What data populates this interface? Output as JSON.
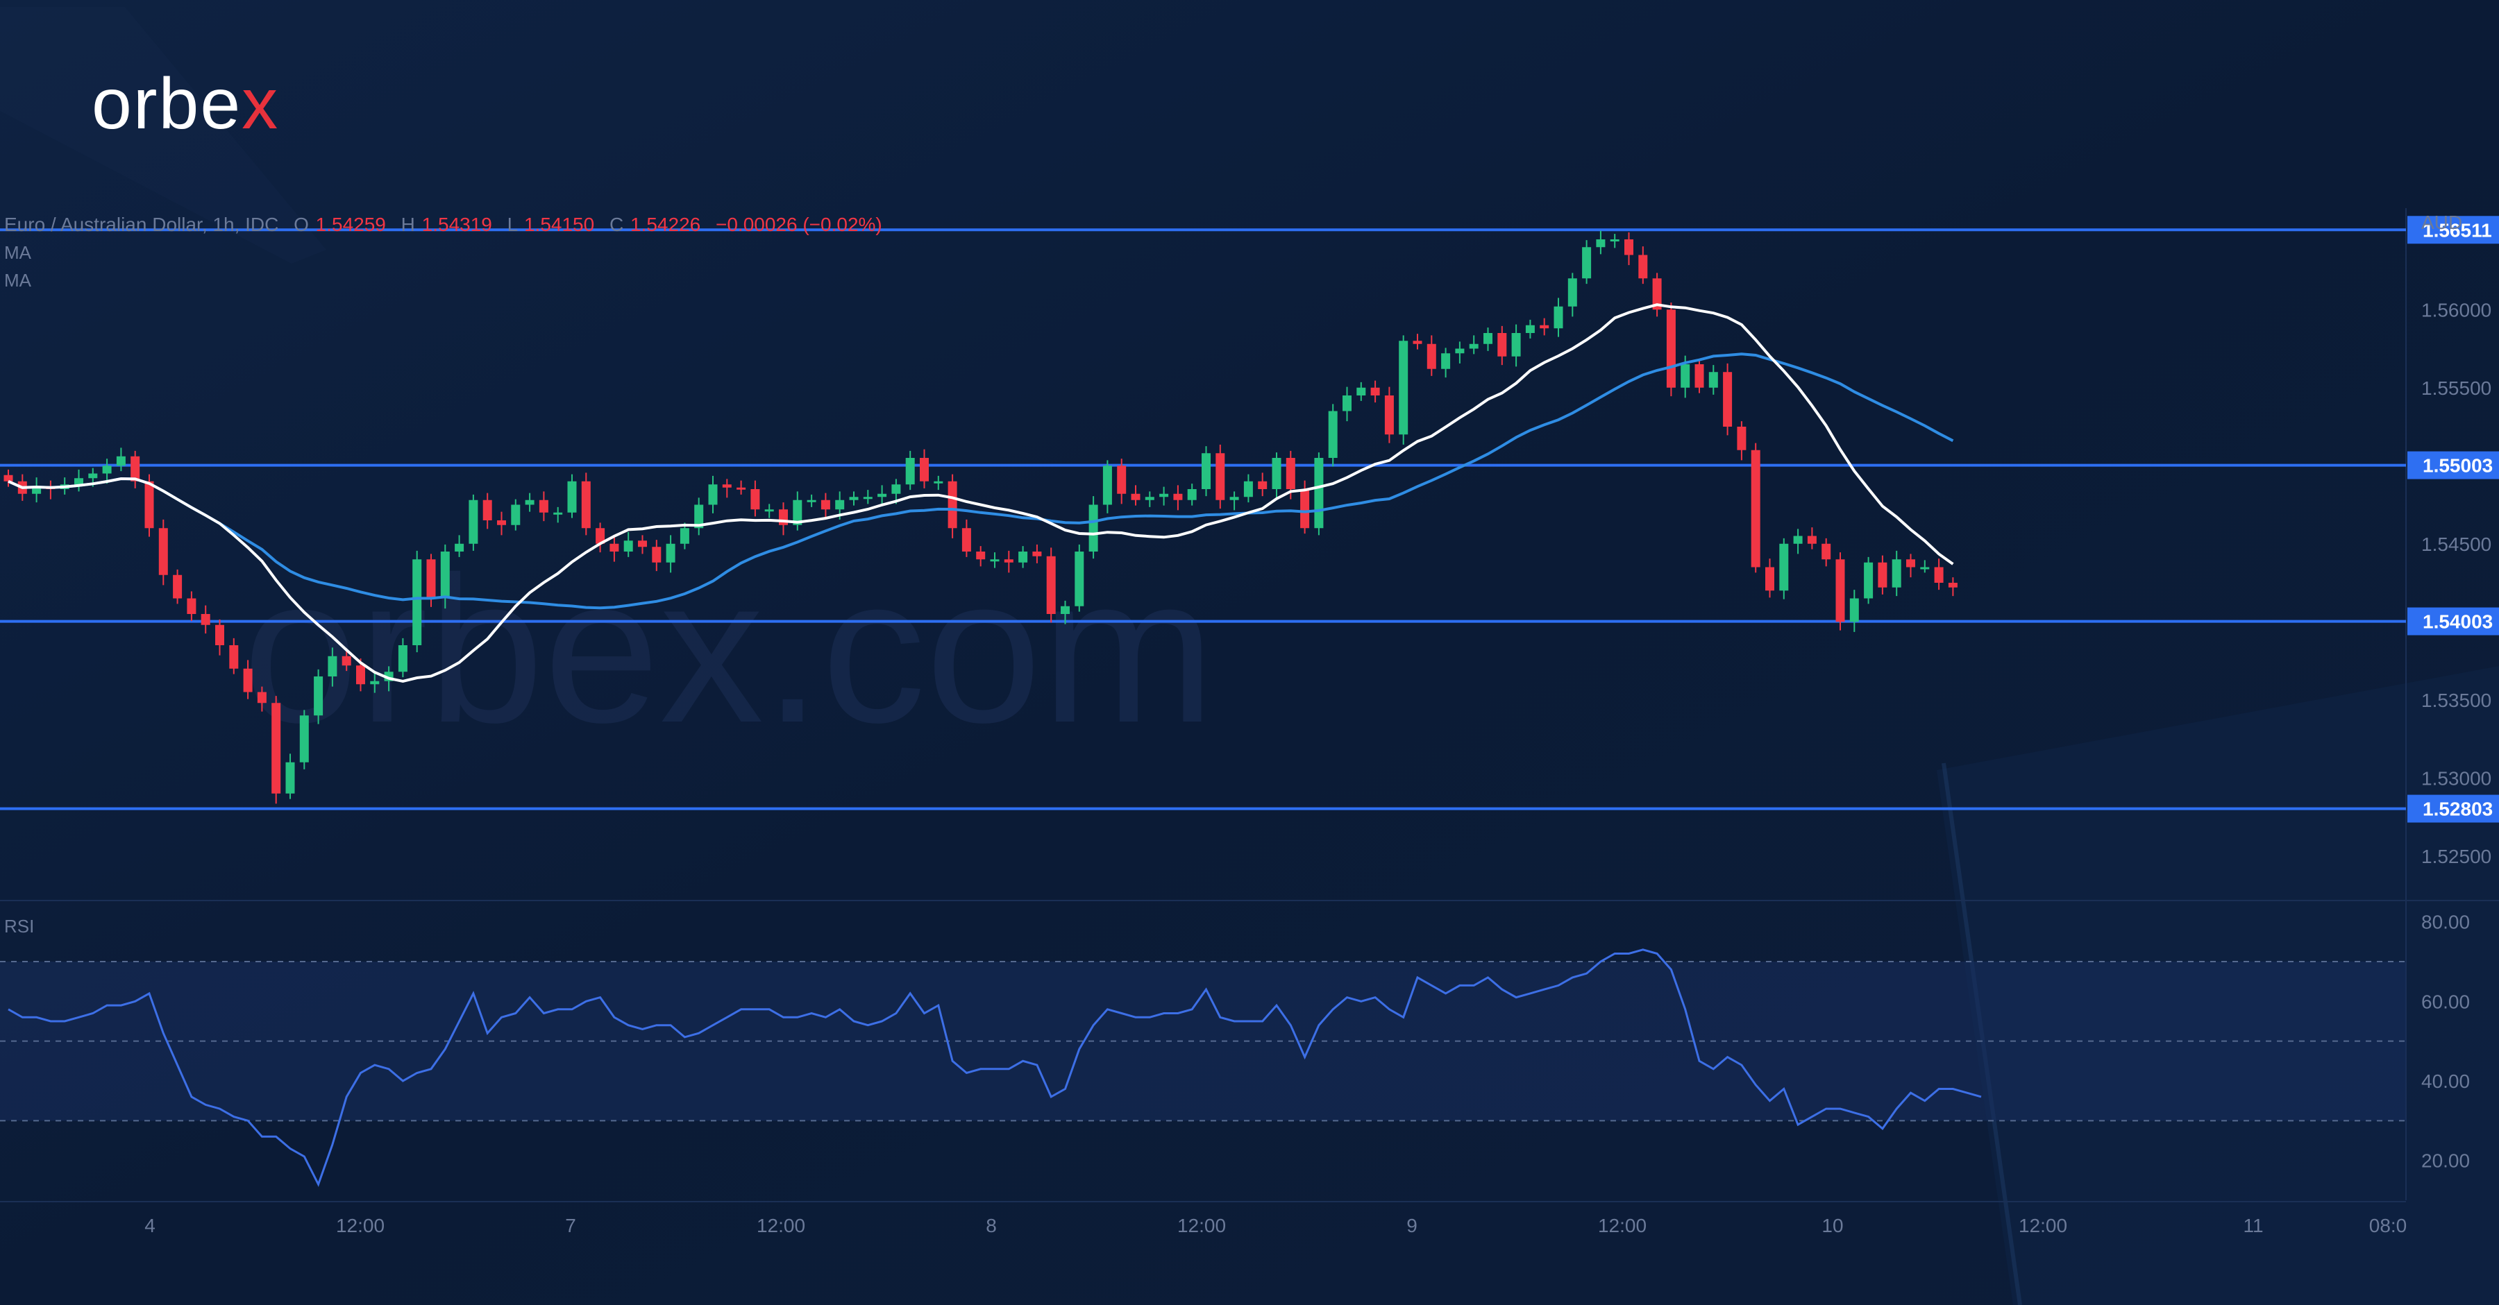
{
  "brand": {
    "logo_text": "orbex",
    "watermark_text": "orbex.com"
  },
  "colors": {
    "background": "#0b1b36",
    "up": "#26c281",
    "down": "#f23645",
    "ma_fast": "#ffffff",
    "ma_slow": "#2f8de4",
    "level_line": "#2e6ff2",
    "rsi_line": "#3d6fe6",
    "text": "#6b7a99",
    "logo_x": "#e8323c"
  },
  "legend": {
    "symbol": "Euro / Australian Dollar, 1h, IDC",
    "o_label": "O",
    "o_value": "1.54259",
    "h_label": "H",
    "h_value": "1.54319",
    "l_label": "L",
    "l_value": "1.54150",
    "c_label": "C",
    "c_value": "1.54226",
    "change": "−0.00026 (−0.02%)",
    "ma1": "MA",
    "ma2": "MA"
  },
  "rsi_label": "RSI",
  "currency": "AUD",
  "chart_data": [
    {
      "type": "candlestick",
      "title": "Euro / Australian Dollar, 1h, IDC",
      "ylabel": "AUD",
      "ylim": [
        1.5225,
        1.5665
      ],
      "x_ticks": [
        "4",
        "12:00",
        "7",
        "12:00",
        "8",
        "12:00",
        "9",
        "12:00",
        "10",
        "12:00",
        "11",
        "08:0"
      ],
      "y_ticks": [
        "1.56000",
        "1.55500",
        "1.54500",
        "1.53500",
        "1.53000",
        "1.52500"
      ],
      "levels": [
        {
          "value": 1.56511,
          "label": "1.56511"
        },
        {
          "value": 1.55003,
          "label": "1.55003"
        },
        {
          "value": 1.54003,
          "label": "1.54003"
        },
        {
          "value": 1.52803,
          "label": "1.52803"
        }
      ],
      "close": [
        1.549,
        1.5482,
        1.5487,
        1.5485,
        1.5488,
        1.5492,
        1.5495,
        1.55,
        1.5506,
        1.549,
        1.546,
        1.543,
        1.5415,
        1.5405,
        1.5398,
        1.5385,
        1.537,
        1.5355,
        1.5348,
        1.529,
        1.531,
        1.534,
        1.5365,
        1.5378,
        1.5372,
        1.536,
        1.5362,
        1.5368,
        1.5385,
        1.544,
        1.5415,
        1.5445,
        1.545,
        1.5478,
        1.5465,
        1.5462,
        1.5475,
        1.5478,
        1.547,
        1.547,
        1.549,
        1.546,
        1.545,
        1.5445,
        1.5452,
        1.5448,
        1.5438,
        1.545,
        1.546,
        1.5475,
        1.5488,
        1.5486,
        1.5485,
        1.5472,
        1.5472,
        1.5462,
        1.5478,
        1.5478,
        1.5472,
        1.5478,
        1.548,
        1.548,
        1.5482,
        1.5488,
        1.5505,
        1.549,
        1.549,
        1.546,
        1.5445,
        1.544,
        1.544,
        1.5438,
        1.5445,
        1.5442,
        1.5405,
        1.541,
        1.5445,
        1.5475,
        1.55,
        1.5482,
        1.5478,
        1.548,
        1.5482,
        1.5478,
        1.5485,
        1.5508,
        1.5478,
        1.548,
        1.549,
        1.5485,
        1.5505,
        1.5485,
        1.546,
        1.5505,
        1.5535,
        1.5545,
        1.555,
        1.5545,
        1.552,
        1.558,
        1.5578,
        1.5562,
        1.5572,
        1.5575,
        1.5578,
        1.5585,
        1.557,
        1.5585,
        1.559,
        1.5588,
        1.5602,
        1.562,
        1.564,
        1.5645,
        1.5645,
        1.5635,
        1.562,
        1.56,
        1.555,
        1.5565,
        1.555,
        1.556,
        1.5525,
        1.551,
        1.5435,
        1.542,
        1.545,
        1.5455,
        1.545,
        1.544,
        1.54,
        1.5415,
        1.5438,
        1.5422,
        1.544,
        1.5435,
        1.5435,
        1.5425,
        1.5422
      ],
      "ma_fast_last": 1.5475,
      "ma_slow_last": 1.5518,
      "ma_legend": [
        "MA",
        "MA"
      ]
    },
    {
      "type": "line",
      "title": "RSI",
      "ylim": [
        10,
        85
      ],
      "y_ticks": [
        "80.00",
        "60.00",
        "40.00",
        "20.00"
      ],
      "bands": [
        70,
        50,
        30
      ],
      "values": [
        58,
        56,
        56,
        55,
        55,
        56,
        57,
        59,
        59,
        60,
        62,
        52,
        44,
        36,
        34,
        33,
        31,
        30,
        26,
        26,
        23,
        21,
        14,
        24,
        36,
        42,
        44,
        43,
        40,
        42,
        43,
        48,
        55,
        62,
        52,
        56,
        57,
        61,
        57,
        58,
        58,
        60,
        61,
        56,
        54,
        53,
        54,
        54,
        51,
        52,
        54,
        56,
        58,
        58,
        58,
        56,
        56,
        57,
        56,
        58,
        55,
        54,
        55,
        57,
        62,
        57,
        59,
        45,
        42,
        43,
        43,
        43,
        45,
        44,
        36,
        38,
        48,
        54,
        58,
        57,
        56,
        56,
        57,
        57,
        58,
        63,
        56,
        55,
        55,
        55,
        59,
        54,
        46,
        54,
        58,
        61,
        60,
        61,
        58,
        56,
        66,
        64,
        62,
        64,
        64,
        66,
        63,
        61,
        62,
        63,
        64,
        66,
        67,
        70,
        72,
        72,
        73,
        72,
        68,
        58,
        45,
        43,
        46,
        44,
        39,
        35,
        38,
        29,
        31,
        33,
        33,
        32,
        31,
        28,
        33,
        37,
        35,
        38,
        38,
        37,
        36
      ]
    }
  ]
}
